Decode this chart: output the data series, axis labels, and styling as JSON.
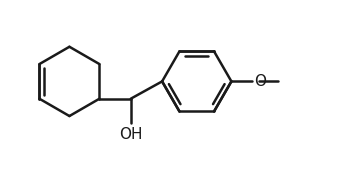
{
  "background_color": "#ffffff",
  "line_color": "#1a1a1a",
  "line_width": 1.8,
  "bond_color": "#1a1a1a",
  "oh_label": "OH",
  "o_label": "O",
  "font_size": 11,
  "fig_width": 3.5,
  "fig_height": 1.76,
  "dpi": 100,
  "xlim": [
    0.0,
    4.2
  ],
  "ylim": [
    -0.55,
    1.55
  ]
}
